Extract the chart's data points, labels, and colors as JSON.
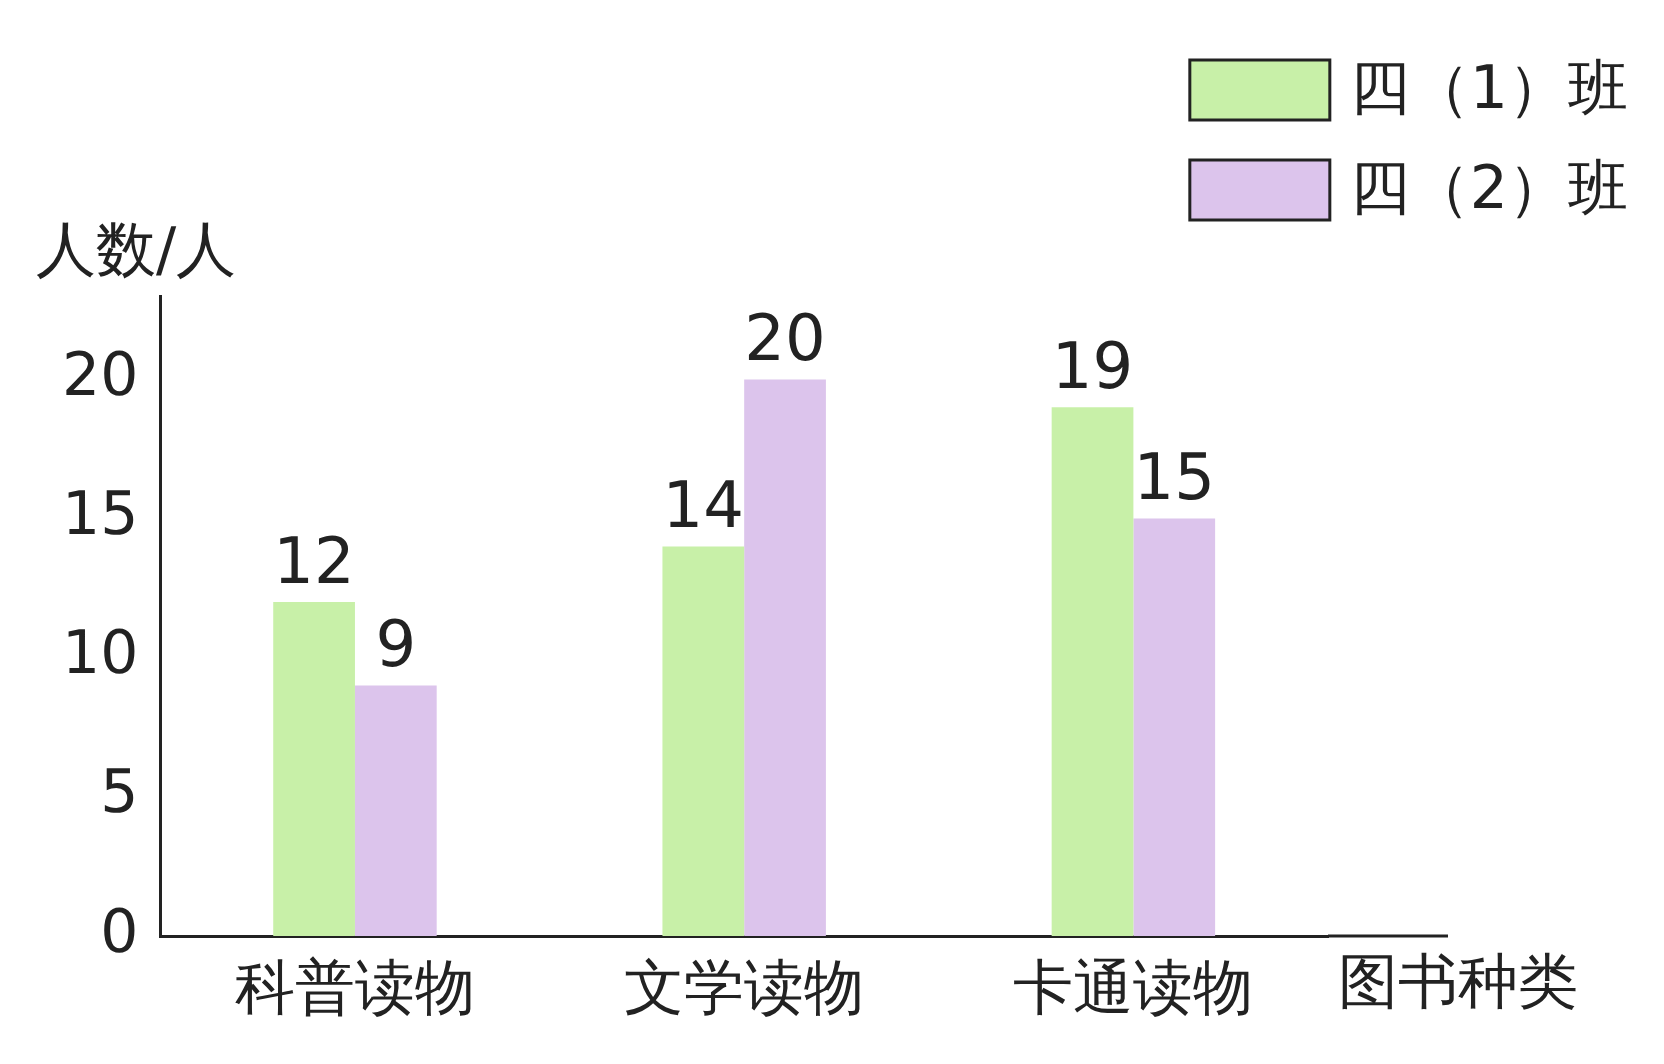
{
  "chart_data": {
    "type": "bar",
    "categories": [
      "科普读物",
      "文学读物",
      "卡通读物"
    ],
    "series": [
      {
        "name": "四（1）班",
        "color": "#c8f0a8",
        "values": [
          12,
          14,
          19
        ]
      },
      {
        "name": "四（2）班",
        "color": "#dcc4ec",
        "values": [
          9,
          20,
          15
        ]
      }
    ],
    "ylabel": "人数/人",
    "xlabel": "图书种类",
    "ylim": [
      0,
      23
    ],
    "yticks": [
      0,
      5,
      10,
      15,
      20
    ],
    "grid": false,
    "legend": "top right",
    "data_labels": true
  }
}
